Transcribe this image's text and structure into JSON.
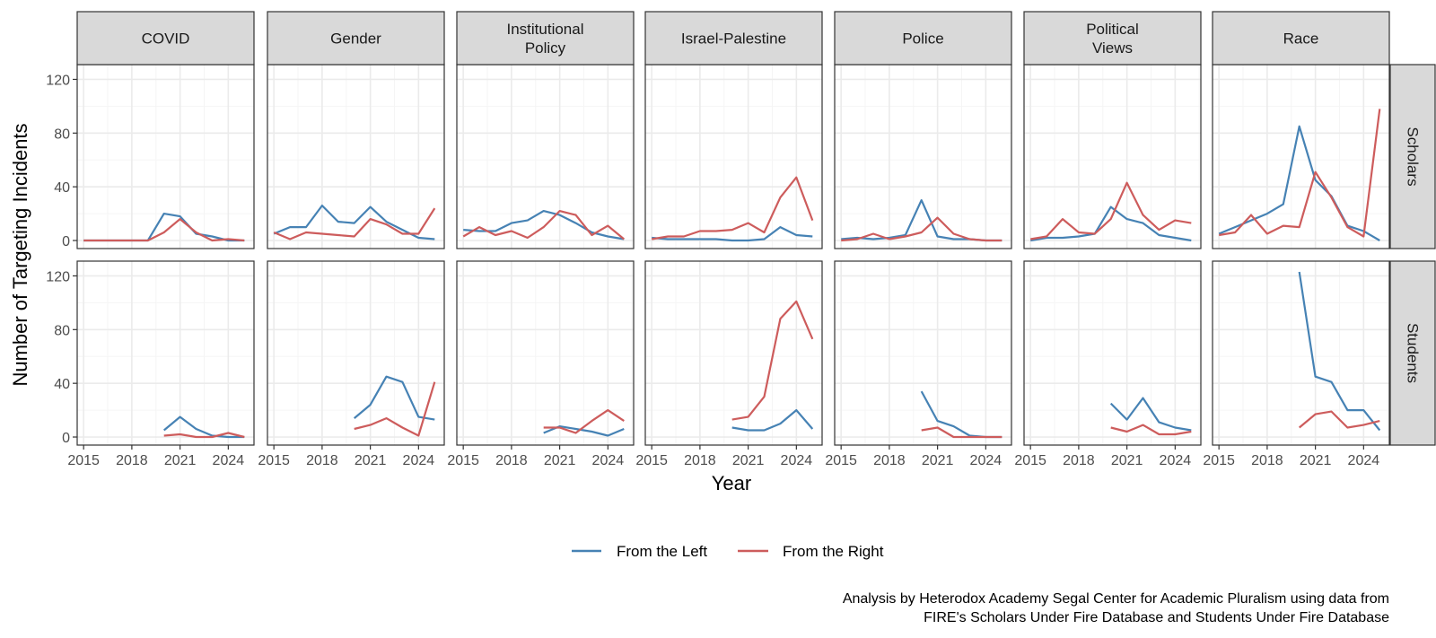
{
  "chart_data": {
    "type": "line",
    "layout": "faceted grid",
    "columns": [
      "COVID",
      "Gender",
      "Institutional\nPolicy",
      "Israel-Palestine",
      "Police",
      "Political\nViews",
      "Race"
    ],
    "rows": [
      "Scholars",
      "Students"
    ],
    "xlabel": "Year",
    "ylabel": "Number of Targeting Incidents",
    "xlim": [
      2014.6,
      2025.6
    ],
    "ylim": [
      -6,
      131
    ],
    "x_ticks": [
      2015,
      2018,
      2021,
      2024
    ],
    "y_ticks": [
      0,
      40,
      80,
      120
    ],
    "grid": true,
    "legend_position": "bottom",
    "series_names": [
      "From the Left",
      "From the Right"
    ],
    "colors": {
      "left": "#4682b4",
      "right": "#cd5c5c",
      "strip_bg": "#d9d9d9",
      "grid_major": "#ebebeb",
      "grid_minor": "#f5f5f5",
      "panel_border": "#333333"
    },
    "panels": [
      {
        "row": "Scholars",
        "col": "COVID",
        "left": {
          "x": [
            2015,
            2016,
            2017,
            2018,
            2019,
            2020,
            2021,
            2022,
            2023,
            2024,
            2025
          ],
          "y": [
            0,
            0,
            0,
            0,
            0,
            20,
            18,
            5,
            3,
            0,
            0
          ]
        },
        "right": {
          "x": [
            2015,
            2016,
            2017,
            2018,
            2019,
            2020,
            2021,
            2022,
            2023,
            2024,
            2025
          ],
          "y": [
            0,
            0,
            0,
            0,
            0,
            6,
            16,
            6,
            0,
            1,
            0
          ]
        }
      },
      {
        "row": "Scholars",
        "col": "Gender",
        "left": {
          "x": [
            2015,
            2016,
            2017,
            2018,
            2019,
            2020,
            2021,
            2022,
            2023,
            2024,
            2025
          ],
          "y": [
            5,
            10,
            10,
            26,
            14,
            13,
            25,
            14,
            8,
            2,
            1
          ]
        },
        "right": {
          "x": [
            2015,
            2016,
            2017,
            2018,
            2019,
            2020,
            2021,
            2022,
            2023,
            2024,
            2025
          ],
          "y": [
            6,
            1,
            6,
            5,
            4,
            3,
            16,
            12,
            5,
            5,
            24
          ]
        }
      },
      {
        "row": "Scholars",
        "col": "Institutional\nPolicy",
        "left": {
          "x": [
            2015,
            2016,
            2017,
            2018,
            2019,
            2020,
            2021,
            2022,
            2023,
            2024,
            2025
          ],
          "y": [
            8,
            7,
            7,
            13,
            15,
            22,
            19,
            13,
            6,
            3,
            1
          ]
        },
        "right": {
          "x": [
            2015,
            2016,
            2017,
            2018,
            2019,
            2020,
            2021,
            2022,
            2023,
            2024,
            2025
          ],
          "y": [
            3,
            10,
            4,
            7,
            2,
            10,
            22,
            19,
            4,
            11,
            1
          ]
        }
      },
      {
        "row": "Scholars",
        "col": "Israel-Palestine",
        "left": {
          "x": [
            2015,
            2016,
            2017,
            2018,
            2019,
            2020,
            2021,
            2022,
            2023,
            2024,
            2025
          ],
          "y": [
            2,
            1,
            1,
            1,
            1,
            0,
            0,
            1,
            10,
            4,
            3
          ]
        },
        "right": {
          "x": [
            2015,
            2016,
            2017,
            2018,
            2019,
            2020,
            2021,
            2022,
            2023,
            2024,
            2025
          ],
          "y": [
            1,
            3,
            3,
            7,
            7,
            8,
            13,
            6,
            32,
            47,
            15
          ]
        }
      },
      {
        "row": "Scholars",
        "col": "Police",
        "left": {
          "x": [
            2015,
            2016,
            2017,
            2018,
            2019,
            2020,
            2021,
            2022,
            2023,
            2024,
            2025
          ],
          "y": [
            1,
            2,
            1,
            2,
            4,
            30,
            3,
            1,
            1,
            0,
            0
          ]
        },
        "right": {
          "x": [
            2015,
            2016,
            2017,
            2018,
            2019,
            2020,
            2021,
            2022,
            2023,
            2024,
            2025
          ],
          "y": [
            0,
            1,
            5,
            1,
            3,
            6,
            17,
            5,
            1,
            0,
            0
          ]
        }
      },
      {
        "row": "Scholars",
        "col": "Political\nViews",
        "left": {
          "x": [
            2015,
            2016,
            2017,
            2018,
            2019,
            2020,
            2021,
            2022,
            2023,
            2024,
            2025
          ],
          "y": [
            0,
            2,
            2,
            3,
            5,
            25,
            16,
            13,
            4,
            2,
            0
          ]
        },
        "right": {
          "x": [
            2015,
            2016,
            2017,
            2018,
            2019,
            2020,
            2021,
            2022,
            2023,
            2024,
            2025
          ],
          "y": [
            1,
            3,
            16,
            6,
            5,
            16,
            43,
            19,
            8,
            15,
            13
          ]
        }
      },
      {
        "row": "Scholars",
        "col": "Race",
        "left": {
          "x": [
            2015,
            2016,
            2017,
            2018,
            2019,
            2020,
            2021,
            2022,
            2023,
            2024,
            2025
          ],
          "y": [
            5,
            10,
            15,
            20,
            27,
            85,
            45,
            33,
            11,
            7,
            0
          ]
        },
        "right": {
          "x": [
            2015,
            2016,
            2017,
            2018,
            2019,
            2020,
            2021,
            2022,
            2023,
            2024,
            2025
          ],
          "y": [
            4,
            6,
            19,
            5,
            11,
            10,
            51,
            32,
            10,
            3,
            98
          ]
        }
      },
      {
        "row": "Students",
        "col": "COVID",
        "left": {
          "x": [
            2020,
            2021,
            2022,
            2023,
            2024,
            2025
          ],
          "y": [
            5,
            15,
            6,
            1,
            0,
            0
          ]
        },
        "right": {
          "x": [
            2020,
            2021,
            2022,
            2023,
            2024,
            2025
          ],
          "y": [
            1,
            2,
            0,
            0,
            3,
            0
          ]
        }
      },
      {
        "row": "Students",
        "col": "Gender",
        "left": {
          "x": [
            2020,
            2021,
            2022,
            2023,
            2024,
            2025
          ],
          "y": [
            14,
            24,
            45,
            41,
            15,
            13
          ]
        },
        "right": {
          "x": [
            2020,
            2021,
            2022,
            2023,
            2024,
            2025
          ],
          "y": [
            6,
            9,
            14,
            7,
            1,
            41
          ]
        }
      },
      {
        "row": "Students",
        "col": "Institutional\nPolicy",
        "left": {
          "x": [
            2020,
            2021,
            2022,
            2023,
            2024,
            2025
          ],
          "y": [
            3,
            8,
            6,
            4,
            1,
            6
          ]
        },
        "right": {
          "x": [
            2020,
            2021,
            2022,
            2023,
            2024,
            2025
          ],
          "y": [
            7,
            7,
            3,
            12,
            20,
            12
          ]
        }
      },
      {
        "row": "Students",
        "col": "Israel-Palestine",
        "left": {
          "x": [
            2020,
            2021,
            2022,
            2023,
            2024,
            2025
          ],
          "y": [
            7,
            5,
            5,
            10,
            20,
            6
          ]
        },
        "right": {
          "x": [
            2020,
            2021,
            2022,
            2023,
            2024,
            2025
          ],
          "y": [
            13,
            15,
            30,
            88,
            101,
            73
          ]
        }
      },
      {
        "row": "Students",
        "col": "Police",
        "left": {
          "x": [
            2020,
            2021,
            2022,
            2023,
            2024,
            2025
          ],
          "y": [
            34,
            12,
            8,
            1,
            0,
            0
          ]
        },
        "right": {
          "x": [
            2020,
            2021,
            2022,
            2023,
            2024,
            2025
          ],
          "y": [
            5,
            7,
            0,
            0,
            0,
            0
          ]
        }
      },
      {
        "row": "Students",
        "col": "Political\nViews",
        "left": {
          "x": [
            2020,
            2021,
            2022,
            2023,
            2024,
            2025
          ],
          "y": [
            25,
            13,
            29,
            11,
            7,
            5
          ]
        },
        "right": {
          "x": [
            2020,
            2021,
            2022,
            2023,
            2024,
            2025
          ],
          "y": [
            7,
            4,
            9,
            2,
            2,
            4
          ]
        }
      },
      {
        "row": "Students",
        "col": "Race",
        "left": {
          "x": [
            2020,
            2021,
            2022,
            2023,
            2024,
            2025
          ],
          "y": [
            123,
            45,
            41,
            20,
            20,
            5
          ]
        },
        "right": {
          "x": [
            2020,
            2021,
            2022,
            2023,
            2024,
            2025
          ],
          "y": [
            7,
            17,
            19,
            7,
            9,
            12
          ]
        }
      }
    ],
    "caption": [
      "Analysis by Heterodox Academy Segal Center for Academic Pluralism using data from",
      "FIRE's Scholars Under Fire Database and Students Under Fire Database"
    ]
  }
}
